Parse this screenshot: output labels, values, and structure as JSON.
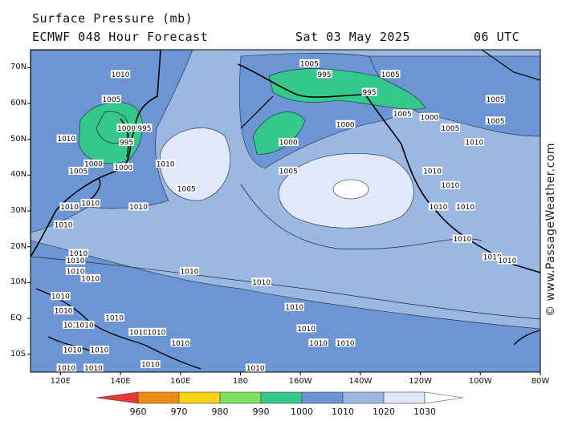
{
  "header": {
    "title_line1": "Surface Pressure (mb)",
    "title_line2": "ECMWF 048 Hour Forecast",
    "date": "Sat 03 May 2025",
    "hour": "06 UTC"
  },
  "credit": "© www.PassageWeather.com",
  "axes": {
    "lat_labels": [
      "70N",
      "60N",
      "50N",
      "40N",
      "30N",
      "20N",
      "10N",
      "EQ",
      "10S"
    ],
    "lon_labels": [
      "120E",
      "140E",
      "160E",
      "180",
      "160W",
      "140W",
      "120W",
      "100W",
      "80W"
    ]
  },
  "legend": {
    "levels": [
      "960",
      "970",
      "980",
      "990",
      "1000",
      "1010",
      "1020",
      "1030"
    ],
    "colors": [
      "#e8383a",
      "#f08a12",
      "#f5d416",
      "#7ce05e",
      "#34c88c",
      "#6c95d4",
      "#9ab8e2",
      "#dfe9f7"
    ]
  },
  "isobar_labels": [
    {
      "text": "1010",
      "lon": 140,
      "lat": 68
    },
    {
      "text": "1005",
      "lon": 137,
      "lat": 61
    },
    {
      "text": "1000",
      "lon": 142,
      "lat": 53
    },
    {
      "text": "995",
      "lon": 148,
      "lat": 53
    },
    {
      "text": "995",
      "lon": 142,
      "lat": 49
    },
    {
      "text": "1010",
      "lon": 122,
      "lat": 50
    },
    {
      "text": "1000",
      "lon": 131,
      "lat": 43
    },
    {
      "text": "1005",
      "lon": 126,
      "lat": 41
    },
    {
      "text": "1000",
      "lon": 141,
      "lat": 42
    },
    {
      "text": "1010",
      "lon": 155,
      "lat": 43
    },
    {
      "text": "1005",
      "lon": 162,
      "lat": 36
    },
    {
      "text": "1010",
      "lon": 130,
      "lat": 32
    },
    {
      "text": "1010",
      "lon": 146,
      "lat": 31
    },
    {
      "text": "1000",
      "lon": -164,
      "lat": 49
    },
    {
      "text": "1005",
      "lon": -164,
      "lat": 41
    },
    {
      "text": "1005",
      "lon": -157,
      "lat": 71
    },
    {
      "text": "995",
      "lon": -152,
      "lat": 68
    },
    {
      "text": "995",
      "lon": -137,
      "lat": 63
    },
    {
      "text": "1005",
      "lon": -130,
      "lat": 68
    },
    {
      "text": "1000",
      "lon": -145,
      "lat": 54
    },
    {
      "text": "1005",
      "lon": -126,
      "lat": 57
    },
    {
      "text": "1000",
      "lon": -117,
      "lat": 56
    },
    {
      "text": "1005",
      "lon": -110,
      "lat": 53
    },
    {
      "text": "1005",
      "lon": -95,
      "lat": 61
    },
    {
      "text": "1005",
      "lon": -95,
      "lat": 55
    },
    {
      "text": "1010",
      "lon": -102,
      "lat": 49
    },
    {
      "text": "1010",
      "lon": -116,
      "lat": 41
    },
    {
      "text": "1010",
      "lon": -110,
      "lat": 37
    },
    {
      "text": "1010",
      "lon": -114,
      "lat": 31
    },
    {
      "text": "1010",
      "lon": -105,
      "lat": 31
    },
    {
      "text": "1010",
      "lon": -106,
      "lat": 22
    },
    {
      "text": "1010",
      "lon": -96,
      "lat": 17
    },
    {
      "text": "1010",
      "lon": -91,
      "lat": 16
    },
    {
      "text": "1010",
      "lon": 123,
      "lat": 31
    },
    {
      "text": "1010",
      "lon": 121,
      "lat": 26
    },
    {
      "text": "1010",
      "lon": 126,
      "lat": 18
    },
    {
      "text": "1010",
      "lon": 125,
      "lat": 16
    },
    {
      "text": "1010",
      "lon": 125,
      "lat": 13
    },
    {
      "text": "1010",
      "lon": 130,
      "lat": 11
    },
    {
      "text": "1010",
      "lon": 120,
      "lat": 6
    },
    {
      "text": "1010",
      "lon": 121,
      "lat": 2
    },
    {
      "text": "1010",
      "lon": 124,
      "lat": -2
    },
    {
      "text": "1010",
      "lon": 128,
      "lat": -2
    },
    {
      "text": "1010",
      "lon": 138,
      "lat": 0
    },
    {
      "text": "1010",
      "lon": 146,
      "lat": -4
    },
    {
      "text": "1010",
      "lon": 152,
      "lat": -4
    },
    {
      "text": "1010",
      "lon": 160,
      "lat": -7
    },
    {
      "text": "1010",
      "lon": 124,
      "lat": -9
    },
    {
      "text": "1010",
      "lon": 133,
      "lat": -9
    },
    {
      "text": "1010",
      "lon": 122,
      "lat": -14
    },
    {
      "text": "1010",
      "lon": 131,
      "lat": -14
    },
    {
      "text": "1010",
      "lon": 150,
      "lat": -13
    },
    {
      "text": "1010",
      "lon": 163,
      "lat": 13
    },
    {
      "text": "1010",
      "lon": -173,
      "lat": 10
    },
    {
      "text": "1010",
      "lon": -162,
      "lat": 3
    },
    {
      "text": "1010",
      "lon": -158,
      "lat": -3
    },
    {
      "text": "1010",
      "lon": -154,
      "lat": -7
    },
    {
      "text": "1010",
      "lon": -145,
      "lat": -7
    },
    {
      "text": "1010",
      "lon": -175,
      "lat": -14
    }
  ]
}
